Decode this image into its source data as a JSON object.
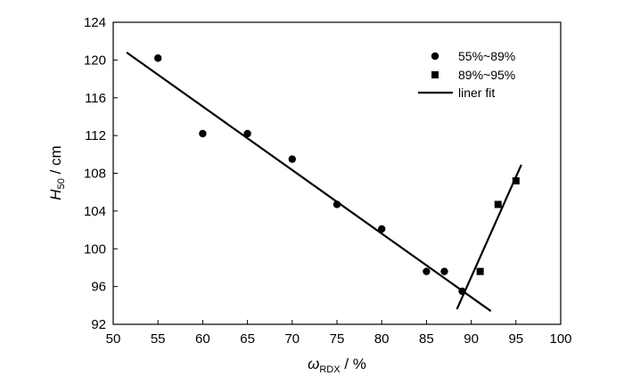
{
  "chart_data": {
    "type": "scatter",
    "xlabel": {
      "main": "ω",
      "sub": "RDX",
      "unit": " / %"
    },
    "ylabel": {
      "main": "H",
      "sub": "50",
      "unit": " / cm"
    },
    "xlim": [
      50,
      100
    ],
    "ylim": [
      92,
      124
    ],
    "xticks": [
      50,
      55,
      60,
      65,
      70,
      75,
      80,
      85,
      90,
      95,
      100
    ],
    "yticks": [
      92,
      96,
      100,
      104,
      108,
      112,
      116,
      120,
      124
    ],
    "grid": false,
    "legend_position": "top-right",
    "series": [
      {
        "name": "55%~89%",
        "marker": "circle",
        "points": [
          [
            55,
            120.2
          ],
          [
            60,
            112.2
          ],
          [
            65,
            112.2
          ],
          [
            70,
            109.5
          ],
          [
            75,
            104.7
          ],
          [
            80,
            102.1
          ],
          [
            85,
            97.6
          ],
          [
            87,
            97.6
          ],
          [
            89,
            95.5
          ]
        ]
      },
      {
        "name": "89%~95%",
        "marker": "square",
        "points": [
          [
            91,
            97.6
          ],
          [
            93,
            104.7
          ],
          [
            95,
            107.2
          ]
        ]
      }
    ],
    "fits": [
      {
        "name": "liner fit",
        "from": [
          51.5,
          120.8
        ],
        "to": [
          92.2,
          93.4
        ]
      },
      {
        "name": "liner fit",
        "from": [
          88.4,
          93.6
        ],
        "to": [
          95.6,
          108.9
        ]
      }
    ],
    "legend": [
      {
        "label": "55%~89%",
        "marker": "circle"
      },
      {
        "label": "89%~95%",
        "marker": "square"
      },
      {
        "label": "liner fit",
        "marker": "line"
      }
    ]
  }
}
